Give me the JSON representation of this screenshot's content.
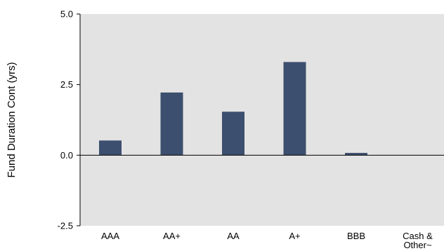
{
  "chart_data": {
    "type": "bar",
    "title": "",
    "xlabel": "",
    "ylabel": "Fund Duration Cont (yrs)",
    "categories": [
      "AAA",
      "AA+",
      "AA",
      "A+",
      "BBB",
      "Cash & Other~"
    ],
    "category_lines": [
      [
        "AAA"
      ],
      [
        "AA+"
      ],
      [
        "AA"
      ],
      [
        "A+"
      ],
      [
        "BBB"
      ],
      [
        "Cash &",
        "Other~"
      ]
    ],
    "values": [
      0.52,
      2.22,
      1.54,
      3.3,
      0.08,
      0.0
    ],
    "ylim": [
      -2.5,
      5.0
    ],
    "yticks": [
      "5.0",
      "2.5",
      "0.0",
      "-2.5"
    ],
    "ytick_values": [
      5.0,
      2.5,
      0.0,
      -2.5
    ],
    "grid": false,
    "legend": "none",
    "colors": {
      "bar": "#3d4f6e",
      "plot_background": "#e3e3e3",
      "axis": "#000000"
    }
  }
}
